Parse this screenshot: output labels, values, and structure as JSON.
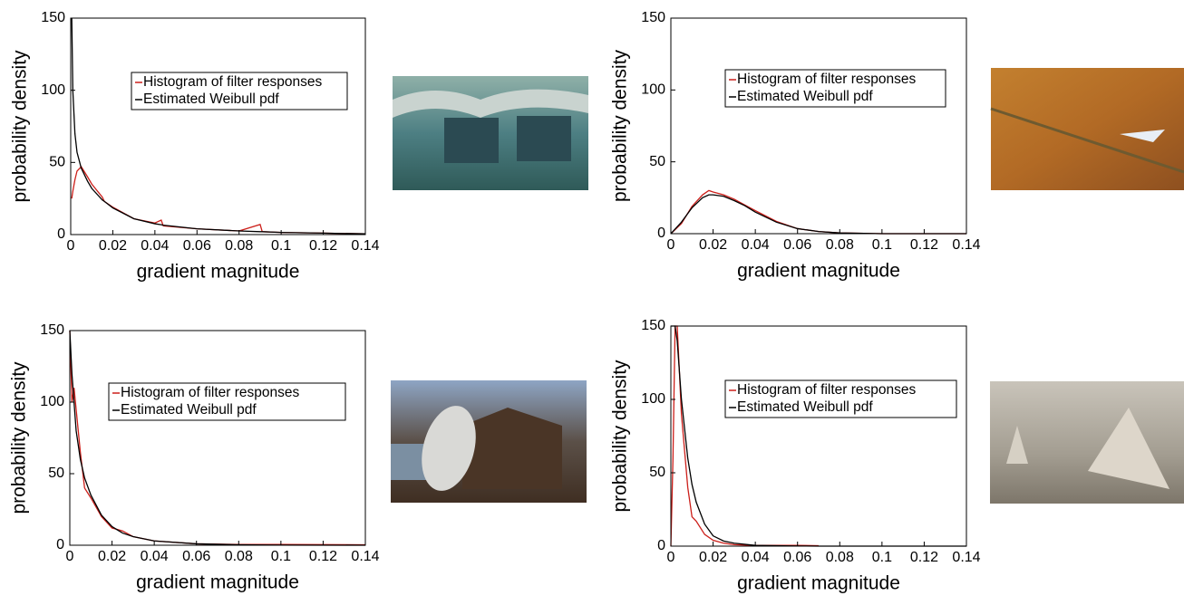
{
  "chart_data": [
    {
      "type": "line",
      "x_label": "gradient magnitude",
      "y_label": "probability density",
      "x": [
        0.0005,
        0.001,
        0.002,
        0.003,
        0.005,
        0.008,
        0.01,
        0.015,
        0.016,
        0.02,
        0.03,
        0.04,
        0.043,
        0.044,
        0.06,
        0.08,
        0.09,
        0.091,
        0.1,
        0.12,
        0.14
      ],
      "series": [
        {
          "name": "Histogram of filter responses",
          "color": "#cc1f1a",
          "values": [
            25,
            30,
            38,
            44,
            47,
            40,
            35,
            26,
            23,
            19,
            11,
            8,
            10,
            6,
            4,
            2.5,
            7,
            2,
            1.5,
            1,
            0.5
          ]
        },
        {
          "name": "Estimated Weibull pdf",
          "color": "#000000",
          "values": [
            150,
            100,
            70,
            57,
            46,
            37,
            32,
            24,
            23,
            18.5,
            11,
            7.5,
            6.8,
            6.5,
            4,
            2.5,
            2,
            2,
            1.5,
            1,
            0.5
          ]
        }
      ],
      "xlim": [
        0,
        0.14
      ],
      "xticks": [
        0,
        0.02,
        0.04,
        0.06,
        0.08,
        0.1,
        0.12,
        0.14
      ],
      "ylim": [
        0,
        150
      ],
      "yticks": [
        0,
        50,
        100,
        150
      ]
    },
    {
      "type": "line",
      "x_label": "gradient magnitude",
      "y_label": "probability density",
      "x": [
        0,
        0.005,
        0.01,
        0.015,
        0.018,
        0.02,
        0.025,
        0.03,
        0.035,
        0.04,
        0.05,
        0.06,
        0.07,
        0.08,
        0.1,
        0.14
      ],
      "series": [
        {
          "name": "Histogram of filter responses",
          "color": "#cc1f1a",
          "values": [
            0,
            7,
            19,
            27,
            30,
            29,
            27,
            24,
            20,
            16,
            8.5,
            3.5,
            1.5,
            0.5,
            0,
            0
          ]
        },
        {
          "name": "Estimated Weibull pdf",
          "color": "#000000",
          "values": [
            0,
            8,
            18,
            25,
            27,
            27,
            26,
            23,
            19.5,
            15,
            8,
            3.5,
            1.5,
            0.5,
            0,
            0
          ]
        }
      ],
      "xlim": [
        0,
        0.14
      ],
      "xticks": [
        0,
        0.02,
        0.04,
        0.06,
        0.08,
        0.1,
        0.12,
        0.14
      ],
      "ylim": [
        0,
        150
      ],
      "yticks": [
        0,
        50,
        100,
        150
      ]
    },
    {
      "type": "line",
      "x_label": "gradient magnitude",
      "y_label": "probability density",
      "x": [
        0,
        0.001,
        0.002,
        0.003,
        0.005,
        0.007,
        0.01,
        0.015,
        0.02,
        0.025,
        0.03,
        0.04,
        0.06,
        0.08,
        0.1,
        0.14
      ],
      "series": [
        {
          "name": "Histogram of filter responses",
          "color": "#cc1f1a",
          "values": [
            150,
            100,
            110,
            95,
            65,
            40,
            33,
            20,
            12,
            10,
            6,
            3,
            1,
            0.5,
            0.5,
            0.3
          ]
        },
        {
          "name": "Estimated Weibull pdf",
          "color": "#000000",
          "values": [
            150,
            120,
            100,
            80,
            60,
            47,
            35,
            21,
            13,
            8.5,
            6,
            3,
            1,
            0.3,
            0.1,
            0
          ]
        }
      ],
      "xlim": [
        0,
        0.14
      ],
      "xticks": [
        0,
        0.02,
        0.04,
        0.06,
        0.08,
        0.1,
        0.12,
        0.14
      ],
      "ylim": [
        0,
        150
      ],
      "yticks": [
        0,
        50,
        100,
        150
      ]
    },
    {
      "type": "line",
      "x_label": "gradient magnitude",
      "y_label": "probability density",
      "x": [
        0,
        0.001,
        0.002,
        0.003,
        0.005,
        0.008,
        0.01,
        0.012,
        0.016,
        0.02,
        0.025,
        0.03,
        0.04,
        0.06,
        0.07,
        0.1,
        0.14
      ],
      "series": [
        {
          "name": "Histogram of filter responses",
          "color": "#cc1f1a",
          "values": [
            0,
            60,
            150,
            150,
            90,
            40,
            20,
            17,
            8,
            4,
            2,
            1,
            0.5,
            0.5,
            0.3,
            null,
            null
          ]
        },
        {
          "name": "Estimated Weibull pdf",
          "color": "#000000",
          "values": [
            150,
            150,
            150,
            140,
            100,
            60,
            42,
            30,
            15,
            7,
            3.5,
            2,
            0.5,
            0.1,
            0,
            0,
            0
          ]
        }
      ],
      "xlim": [
        0,
        0.14
      ],
      "xticks": [
        0,
        0.02,
        0.04,
        0.06,
        0.08,
        0.1,
        0.12,
        0.14
      ],
      "ylim": [
        0,
        150
      ],
      "yticks": [
        0,
        50,
        100,
        150
      ]
    }
  ]
}
